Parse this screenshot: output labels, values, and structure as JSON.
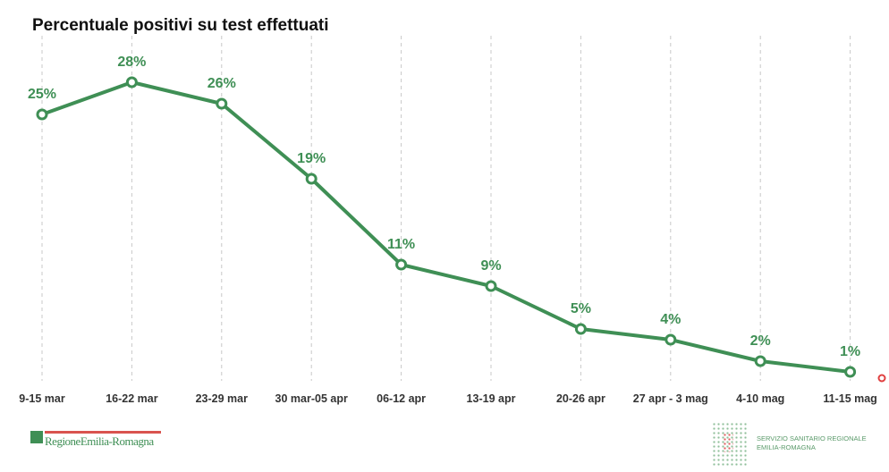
{
  "chart_data": {
    "type": "line",
    "title": "Percentuale positivi su test effettuati",
    "categories": [
      "9-15 mar",
      "16-22 mar",
      "23-29 mar",
      "30 mar-05 apr",
      "06-12 apr",
      "13-19 apr",
      "20-26 apr",
      "27 apr - 3 mag",
      "4-10 mag",
      "11-15 mag"
    ],
    "values": [
      25,
      28,
      26,
      19,
      11,
      9,
      5,
      4,
      2,
      1
    ],
    "data_labels": [
      "25%",
      "28%",
      "26%",
      "19%",
      "11%",
      "9%",
      "5%",
      "4%",
      "2%",
      "1%"
    ],
    "unit": "%",
    "xlabel": "",
    "ylabel": "",
    "ylim": [
      0,
      30
    ],
    "grid": "vertical dashed",
    "series_color": "#3f8f55"
  },
  "logos": {
    "left": "RegioneEmilia-Romagna",
    "right_line1": "SERVIZIO SANITARIO REGIONALE",
    "right_line2": "EMILIA-ROMAGNA"
  }
}
